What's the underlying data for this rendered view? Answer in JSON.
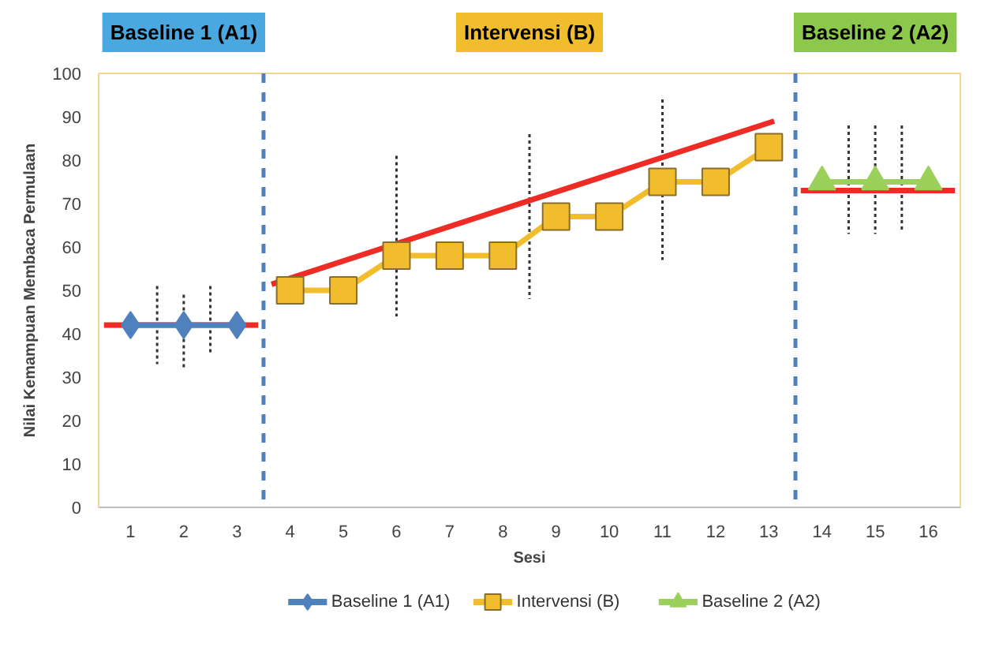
{
  "chart_data": {
    "type": "line",
    "xlabel": "Sesi",
    "ylabel": "Nilai Kemampuan Membaca Permulaan",
    "annotations": [
      "Baseline 1 (A1)",
      "Intervensi (B)",
      "Baseline 2 (A2)"
    ],
    "xlim": [
      0.4,
      16.6
    ],
    "xticks": [
      1,
      2,
      3,
      4,
      5,
      6,
      7,
      8,
      9,
      10,
      11,
      12,
      13,
      14,
      15,
      16
    ],
    "ylim": [
      0,
      100
    ],
    "yticks": [
      0,
      10,
      20,
      30,
      40,
      50,
      60,
      70,
      80,
      90,
      100
    ],
    "grid": false,
    "legend": "bottom",
    "ref_lines": [
      {
        "axis": "x",
        "value": 3.5,
        "color": "#4f81bd",
        "line_style": "dashed"
      },
      {
        "axis": "x",
        "value": 13.5,
        "color": "#4f81bd",
        "line_style": "dashed"
      }
    ],
    "series": [
      {
        "name": "Baseline 1 (A1)",
        "color": "#4f81bd",
        "marker": "diamond",
        "x": [
          1,
          2,
          3
        ],
        "values": [
          42,
          42,
          42
        ]
      },
      {
        "name": "Intervensi (B)",
        "color": "#f2bd2c",
        "marker": "square",
        "x": [
          4,
          5,
          6,
          7,
          8,
          9,
          10,
          11,
          12,
          13
        ],
        "values": [
          50,
          50,
          58,
          58,
          58,
          67,
          67,
          75,
          75,
          83
        ]
      },
      {
        "name": "Baseline 2 (A2)",
        "color": "#9bd15a",
        "marker": "triangle",
        "x": [
          14,
          15,
          16
        ],
        "values": [
          75,
          75,
          75
        ]
      },
      {
        "type": "line",
        "color": "#333333",
        "line_style": "dotted",
        "marker": "none",
        "x": [
          1.5,
          1.5,
          null,
          2,
          2,
          null,
          2.5,
          2.5,
          null,
          6,
          6,
          null,
          8.5,
          8.5,
          null,
          11,
          11,
          null,
          14.5,
          14.5,
          null,
          15,
          15,
          null,
          15.5,
          15.5
        ],
        "values": [
          51,
          33,
          null,
          49,
          32,
          null,
          51,
          35,
          null,
          81,
          44,
          null,
          86,
          48,
          null,
          94,
          57,
          null,
          88,
          63,
          null,
          88,
          63,
          null,
          88,
          64
        ]
      },
      {
        "type": "line",
        "color": "#ee2b24",
        "marker": "none",
        "x": [
          0.5,
          3.4
        ],
        "values": [
          42,
          42
        ]
      },
      {
        "type": "line",
        "color": "#ee2b24",
        "marker": "none",
        "x": [
          3.65,
          13.1
        ],
        "values": [
          51.4,
          89
        ]
      },
      {
        "type": "line",
        "color": "#ee2b24",
        "marker": "none",
        "x": [
          13.6,
          16.5
        ],
        "values": [
          73,
          73
        ]
      }
    ]
  }
}
